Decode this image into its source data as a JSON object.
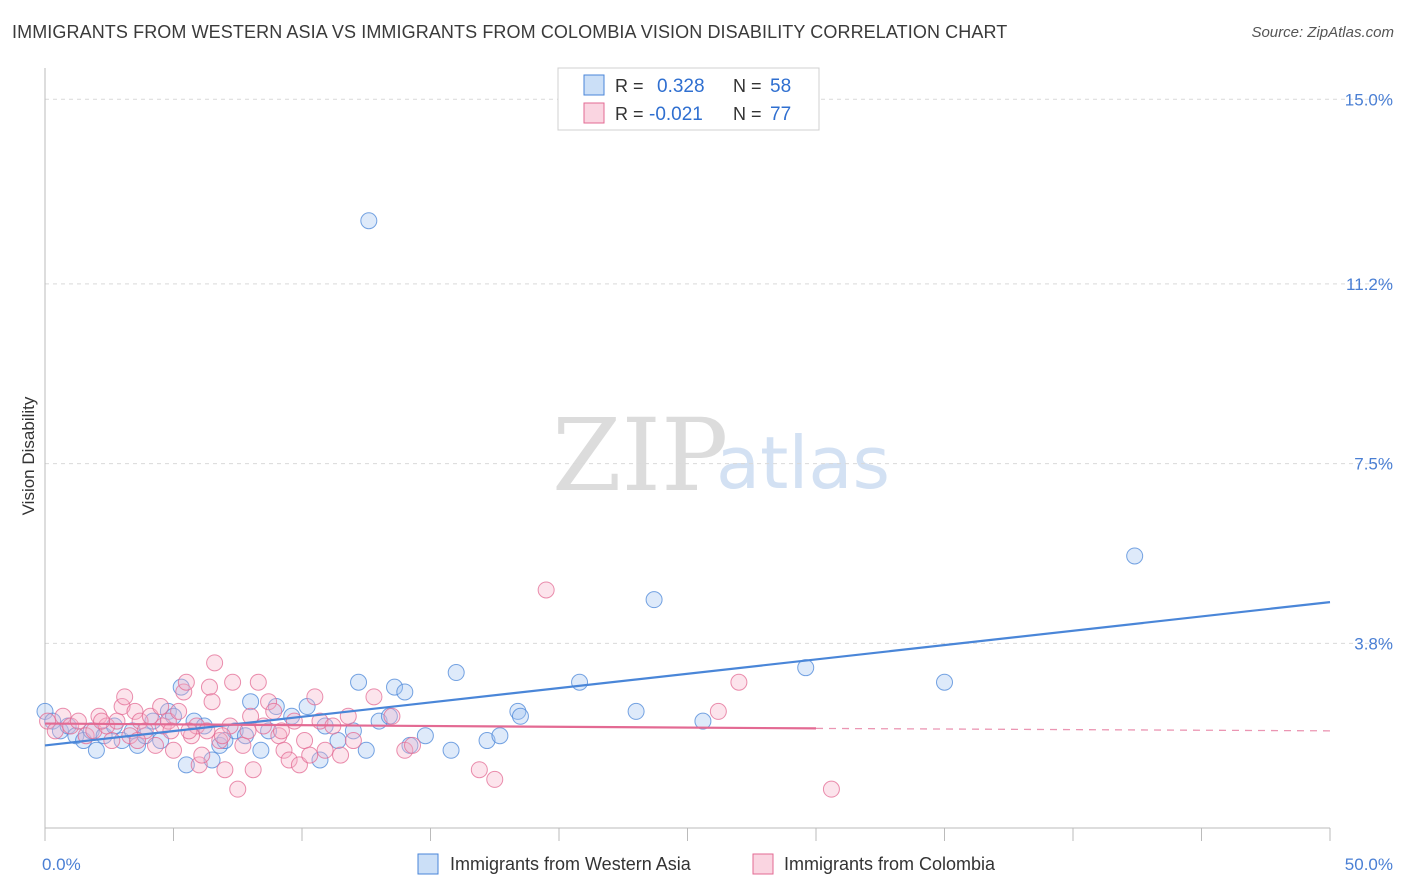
{
  "header": {
    "title": "IMMIGRANTS FROM WESTERN ASIA VS IMMIGRANTS FROM COLOMBIA VISION DISABILITY CORRELATION CHART",
    "source": "Source: ZipAtlas.com"
  },
  "watermark": {
    "zip": "ZIP",
    "atlas": "atlas"
  },
  "legend": {
    "rows": [
      {
        "r_label": "R =",
        "r_value": "0.328",
        "n_label": "N =",
        "n_value": "58"
      },
      {
        "r_label": "R =",
        "r_value": "-0.021",
        "n_label": "N =",
        "n_value": "77"
      }
    ]
  },
  "chart_data": {
    "type": "scatter",
    "ylabel": "Vision Disability",
    "xlim": [
      0,
      50
    ],
    "ylim": [
      0,
      15.5
    ],
    "yticks": [
      3.8,
      7.5,
      11.2,
      15.0
    ],
    "ytick_labels": [
      "3.8%",
      "7.5%",
      "11.2%",
      "15.0%"
    ],
    "xtick_labels": [
      "0.0%",
      "50.0%"
    ],
    "grid": true,
    "series": [
      {
        "name": "Immigrants from Western Asia",
        "color": "#4a86d8",
        "fill": "rgba(160,196,240,0.35)",
        "trend": {
          "x": [
            0,
            50
          ],
          "y": [
            1.7,
            4.65
          ]
        },
        "points": [
          [
            0.0,
            2.4
          ],
          [
            0.3,
            2.2
          ],
          [
            0.6,
            2.0
          ],
          [
            0.9,
            2.1
          ],
          [
            1.2,
            1.9
          ],
          [
            1.5,
            1.8
          ],
          [
            1.8,
            2.0
          ],
          [
            2.0,
            1.6
          ],
          [
            2.3,
            1.9
          ],
          [
            2.7,
            2.1
          ],
          [
            3.0,
            1.8
          ],
          [
            3.4,
            2.0
          ],
          [
            3.6,
            1.7
          ],
          [
            3.9,
            1.9
          ],
          [
            4.2,
            2.2
          ],
          [
            4.5,
            1.8
          ],
          [
            4.8,
            2.4
          ],
          [
            5.0,
            2.3
          ],
          [
            5.3,
            2.9
          ],
          [
            5.5,
            1.3
          ],
          [
            5.8,
            2.2
          ],
          [
            6.2,
            2.1
          ],
          [
            6.5,
            1.4
          ],
          [
            6.8,
            1.7
          ],
          [
            7.0,
            1.8
          ],
          [
            7.4,
            2.0
          ],
          [
            7.8,
            1.9
          ],
          [
            8.0,
            2.6
          ],
          [
            8.4,
            1.6
          ],
          [
            8.7,
            2.0
          ],
          [
            9.0,
            2.5
          ],
          [
            9.6,
            2.3
          ],
          [
            10.2,
            2.5
          ],
          [
            10.7,
            1.4
          ],
          [
            10.9,
            2.1
          ],
          [
            11.4,
            1.8
          ],
          [
            12.0,
            2.0
          ],
          [
            12.2,
            3.0
          ],
          [
            12.5,
            1.6
          ],
          [
            12.6,
            12.5
          ],
          [
            13.0,
            2.2
          ],
          [
            13.4,
            2.3
          ],
          [
            13.6,
            2.9
          ],
          [
            14.0,
            2.8
          ],
          [
            14.2,
            1.7
          ],
          [
            14.8,
            1.9
          ],
          [
            15.8,
            1.6
          ],
          [
            16.0,
            3.2
          ],
          [
            17.2,
            1.8
          ],
          [
            17.7,
            1.9
          ],
          [
            18.4,
            2.4
          ],
          [
            18.5,
            2.3
          ],
          [
            20.8,
            3.0
          ],
          [
            23.0,
            2.4
          ],
          [
            23.7,
            4.7
          ],
          [
            25.6,
            2.2
          ],
          [
            29.6,
            3.3
          ],
          [
            35.0,
            3.0
          ],
          [
            42.4,
            5.6
          ]
        ]
      },
      {
        "name": "Immigrants from Colombia",
        "color": "#e36a93",
        "fill": "rgba(246,178,200,0.35)",
        "trend": {
          "x": [
            0,
            30
          ],
          "y": [
            2.15,
            2.05
          ]
        },
        "trend_dashed": {
          "x": [
            30,
            50
          ],
          "y": [
            2.05,
            2.0
          ]
        },
        "points": [
          [
            0.1,
            2.2
          ],
          [
            0.4,
            2.0
          ],
          [
            0.7,
            2.3
          ],
          [
            1.0,
            2.1
          ],
          [
            1.3,
            2.2
          ],
          [
            1.6,
            1.9
          ],
          [
            1.9,
            2.0
          ],
          [
            2.1,
            2.3
          ],
          [
            2.4,
            2.1
          ],
          [
            2.6,
            1.8
          ],
          [
            2.8,
            2.2
          ],
          [
            3.0,
            2.5
          ],
          [
            3.1,
            2.7
          ],
          [
            3.3,
            1.9
          ],
          [
            3.5,
            2.4
          ],
          [
            3.7,
            2.2
          ],
          [
            3.9,
            2.0
          ],
          [
            4.1,
            2.3
          ],
          [
            4.3,
            1.7
          ],
          [
            4.5,
            2.5
          ],
          [
            4.6,
            2.1
          ],
          [
            4.8,
            2.2
          ],
          [
            5.0,
            1.6
          ],
          [
            5.2,
            2.4
          ],
          [
            5.4,
            2.8
          ],
          [
            5.5,
            3.0
          ],
          [
            5.7,
            1.9
          ],
          [
            5.9,
            2.1
          ],
          [
            6.0,
            1.3
          ],
          [
            6.1,
            1.5
          ],
          [
            6.3,
            2.0
          ],
          [
            6.4,
            2.9
          ],
          [
            6.5,
            2.6
          ],
          [
            6.6,
            3.4
          ],
          [
            6.8,
            1.8
          ],
          [
            7.0,
            1.2
          ],
          [
            7.2,
            2.1
          ],
          [
            7.3,
            3.0
          ],
          [
            7.5,
            0.8
          ],
          [
            7.7,
            1.7
          ],
          [
            7.9,
            2.0
          ],
          [
            8.1,
            1.2
          ],
          [
            8.3,
            3.0
          ],
          [
            8.5,
            2.1
          ],
          [
            8.7,
            2.6
          ],
          [
            8.9,
            2.4
          ],
          [
            9.1,
            1.9
          ],
          [
            9.3,
            1.6
          ],
          [
            9.5,
            1.4
          ],
          [
            9.7,
            2.2
          ],
          [
            9.9,
            1.3
          ],
          [
            10.1,
            1.8
          ],
          [
            10.3,
            1.5
          ],
          [
            10.5,
            2.7
          ],
          [
            10.7,
            2.2
          ],
          [
            10.9,
            1.6
          ],
          [
            11.2,
            2.1
          ],
          [
            11.5,
            1.5
          ],
          [
            12.0,
            1.8
          ],
          [
            12.8,
            2.7
          ],
          [
            13.5,
            2.3
          ],
          [
            14.0,
            1.6
          ],
          [
            14.3,
            1.7
          ],
          [
            16.9,
            1.2
          ],
          [
            17.5,
            1.0
          ],
          [
            19.5,
            4.9
          ],
          [
            26.2,
            2.4
          ],
          [
            27.0,
            3.0
          ],
          [
            30.6,
            0.8
          ],
          [
            2.2,
            2.2
          ],
          [
            4.9,
            2.0
          ],
          [
            6.9,
            1.9
          ],
          [
            8.0,
            2.3
          ],
          [
            9.2,
            2.0
          ],
          [
            11.8,
            2.3
          ],
          [
            3.6,
            1.8
          ],
          [
            5.6,
            2.0
          ]
        ]
      }
    ]
  }
}
